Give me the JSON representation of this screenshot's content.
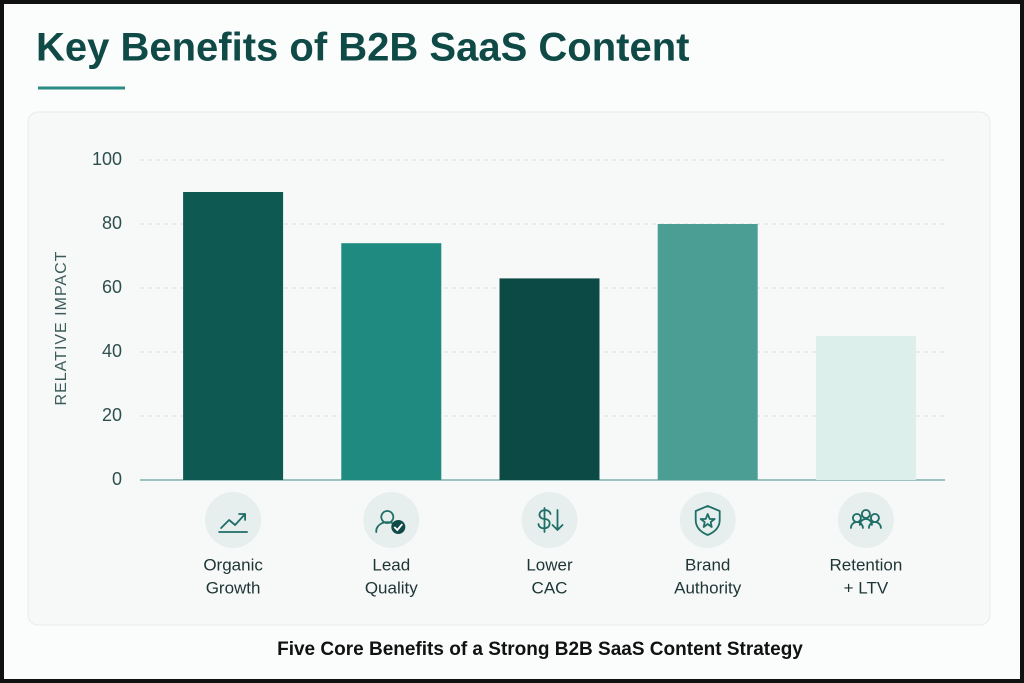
{
  "chart_data": {
    "type": "bar",
    "title": "Key Benefits of B2B SaaS Content",
    "caption": "Five Core Benefits of a Strong B2B SaaS Content Strategy",
    "y_label": "RELATIVE IMPACT",
    "categories": [
      [
        "Organic",
        "Growth"
      ],
      [
        "Lead",
        "Quality"
      ],
      [
        "Lower",
        "CAC"
      ],
      [
        "Brand",
        "Authority"
      ],
      [
        "Retention",
        "+ LTV"
      ]
    ],
    "values": [
      90,
      74,
      63,
      80,
      45
    ],
    "colors": [
      "#0e5a52",
      "#1e8a80",
      "#0c4a45",
      "#4b9e93",
      "#dcefea"
    ],
    "ylim": [
      0,
      100
    ],
    "yticks": [
      0,
      20,
      40,
      60,
      80,
      100
    ],
    "grid": true
  }
}
